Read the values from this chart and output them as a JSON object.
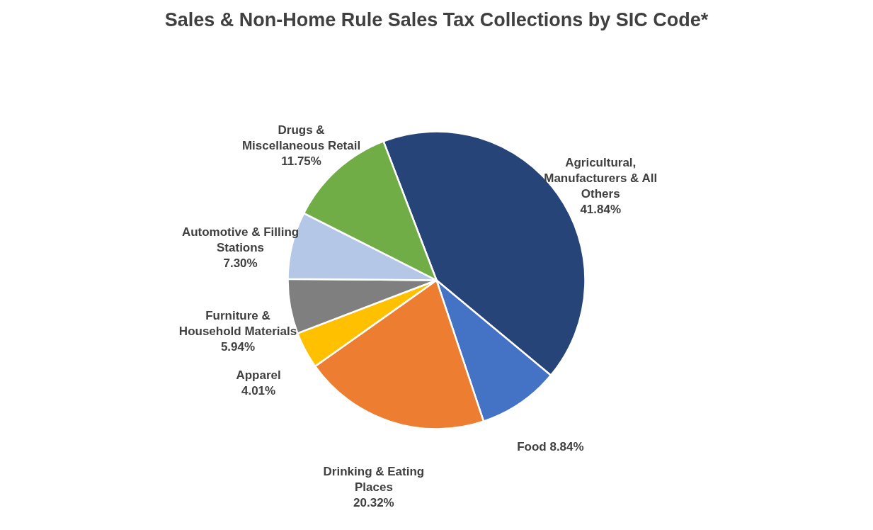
{
  "chart_data": {
    "type": "pie",
    "title": "Sales & Non-Home Rule Sales Tax Collections by SIC Code*",
    "categories": [
      "Agricultural, Manufacturers & All Others",
      "Food",
      "Drinking & Eating Places",
      "Apparel",
      "Furniture & Household Materials",
      "Automotive & Filling Stations",
      "Drugs & Miscellaneous Retail"
    ],
    "values": [
      41.84,
      8.84,
      20.32,
      4.01,
      5.94,
      7.3,
      11.75
    ],
    "colors": [
      "#264478",
      "#4472c4",
      "#ed7d31",
      "#ffc000",
      "#7f7f7f",
      "#b4c7e7",
      "#70ad47"
    ],
    "value_labels": [
      "41.84%",
      "8.84%",
      "20.32%",
      "4.01%",
      "5.94%",
      "7.30%",
      "11.75%"
    ],
    "legend": false
  }
}
